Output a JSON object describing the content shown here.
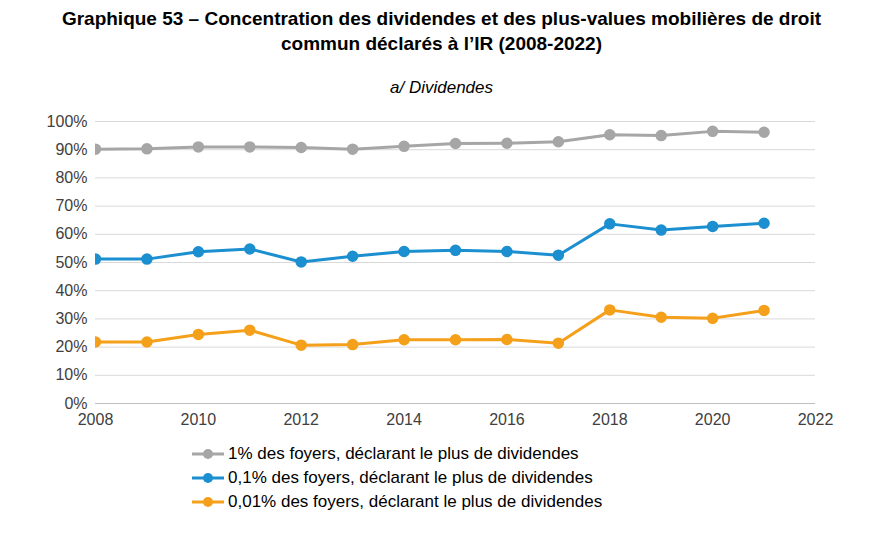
{
  "chart_data": {
    "type": "line",
    "title": "Graphique 53 – Concentration des dividendes et des plus-values mobilières de droit commun déclarés à l’IR (2008-2022)",
    "subtitle": "a/ Dividendes",
    "x": [
      2008,
      2009,
      2010,
      2011,
      2012,
      2013,
      2014,
      2015,
      2016,
      2017,
      2018,
      2019,
      2020,
      2021
    ],
    "series": [
      {
        "name": "1% des foyers, déclarant le plus de dividendes",
        "color": "#a6a6a6",
        "marker": "circle",
        "line_style": "solid",
        "values": [
          90.2,
          90.3,
          91.0,
          91.0,
          90.8,
          90.2,
          91.2,
          92.2,
          92.3,
          92.8,
          95.3,
          95.0,
          96.5,
          96.2
        ]
      },
      {
        "name": "0,1% des foyers, déclarant le plus de dividendes",
        "color": "#1b8fcf",
        "marker": "circle",
        "line_style": "solid",
        "values": [
          51.2,
          51.2,
          53.8,
          54.8,
          50.2,
          52.2,
          53.9,
          54.3,
          53.9,
          52.6,
          63.7,
          61.5,
          62.8,
          63.9
        ]
      },
      {
        "name": "0,01% des foyers, déclarant le plus de dividendes",
        "color": "#f5a01a",
        "marker": "circle",
        "line_style": "solid",
        "values": [
          21.8,
          21.8,
          24.5,
          26.0,
          20.7,
          20.9,
          22.6,
          22.6,
          22.7,
          21.4,
          33.2,
          30.6,
          30.2,
          33.0
        ]
      }
    ],
    "xlim": [
      2008,
      2022
    ],
    "xticks": [
      2008,
      2010,
      2012,
      2014,
      2016,
      2018,
      2020,
      2022
    ],
    "ylim": [
      0,
      100
    ],
    "yticks": [
      {
        "value": 0,
        "label": "0%"
      },
      {
        "value": 10,
        "label": "10%"
      },
      {
        "value": 20,
        "label": "20%"
      },
      {
        "value": 30,
        "label": "30%"
      },
      {
        "value": 40,
        "label": "40%"
      },
      {
        "value": 50,
        "label": "50%"
      },
      {
        "value": 60,
        "label": "60%"
      },
      {
        "value": 70,
        "label": "70%"
      },
      {
        "value": 80,
        "label": "80%"
      },
      {
        "value": 90,
        "label": "90%"
      },
      {
        "value": 100,
        "label": "100%"
      }
    ],
    "grid": true,
    "legend": "bottom"
  }
}
